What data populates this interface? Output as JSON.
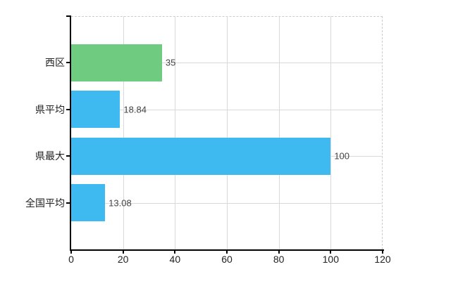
{
  "chart_data": {
    "type": "bar",
    "orientation": "horizontal",
    "categories": [
      "西区",
      "県平均",
      "県最大",
      "全国平均"
    ],
    "values": [
      35,
      18.84,
      100,
      13.08
    ],
    "value_labels": [
      "35",
      "18.84",
      "100",
      "13.08"
    ],
    "bar_colors": [
      "#6ecb80",
      "#3ebaf0",
      "#3ebaf0",
      "#3ebaf0"
    ],
    "x_tick_labels": [
      "0",
      "20",
      "40",
      "60",
      "80",
      "100",
      "120"
    ],
    "x_tick_values": [
      0,
      20,
      40,
      60,
      80,
      100,
      120
    ],
    "xlim": [
      0,
      120
    ],
    "grid": true,
    "legend": false
  },
  "colors": {
    "background": "#ffffff",
    "bar_green": "#6ecb80",
    "bar_blue": "#3ebaf0",
    "gridline": "#d9d9d9",
    "axis_line": "#000000",
    "dashed_border": "#cccccc",
    "value_label_text": "#444444",
    "axis_label_text": "#222222"
  }
}
